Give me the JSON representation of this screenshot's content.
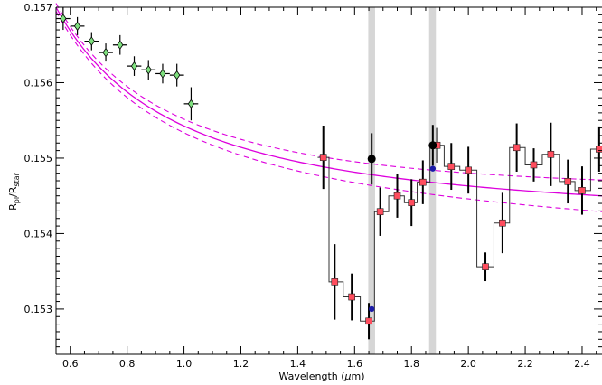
{
  "chart_data": {
    "type": "scatter",
    "title": "",
    "xlabel": "Wavelength (μm)",
    "ylabel": "R_pl/R_star",
    "xlim": [
      0.55,
      2.47
    ],
    "ylim": [
      0.1524,
      0.157
    ],
    "x_ticks": [
      0.6,
      0.8,
      1.0,
      1.2,
      1.4,
      1.6,
      1.8,
      2.0,
      2.2,
      2.4
    ],
    "x_tick_labels": [
      "0.6",
      "0.8",
      "1.0",
      "1.2",
      "1.4",
      "1.6",
      "1.8",
      "2.0",
      "2.2",
      "2.4"
    ],
    "y_ticks": [
      0.153,
      0.154,
      0.155,
      0.156,
      0.157
    ],
    "y_tick_labels": [
      "0.153",
      "0.154",
      "0.155",
      "0.156",
      "0.157"
    ],
    "shaded_bands": [
      {
        "x0": 1.648,
        "x1": 1.672
      },
      {
        "x0": 1.862,
        "x1": 1.886
      }
    ],
    "series": [
      {
        "marker": "green-diamond",
        "color": "#7fe07f",
        "points": [
          {
            "x": 0.575,
            "y": 0.15685,
            "xerr": 0.025,
            "yerr": 0.00015
          },
          {
            "x": 0.625,
            "y": 0.15675,
            "xerr": 0.025,
            "yerr": 0.00012
          },
          {
            "x": 0.675,
            "y": 0.15655,
            "xerr": 0.025,
            "yerr": 0.00012
          },
          {
            "x": 0.725,
            "y": 0.1564,
            "xerr": 0.025,
            "yerr": 0.00012
          },
          {
            "x": 0.775,
            "y": 0.1565,
            "xerr": 0.025,
            "yerr": 0.00013
          },
          {
            "x": 0.825,
            "y": 0.15622,
            "xerr": 0.025,
            "yerr": 0.00013
          },
          {
            "x": 0.875,
            "y": 0.15617,
            "xerr": 0.025,
            "yerr": 0.00013
          },
          {
            "x": 0.925,
            "y": 0.15612,
            "xerr": 0.025,
            "yerr": 0.00013
          },
          {
            "x": 0.975,
            "y": 0.1561,
            "xerr": 0.025,
            "yerr": 0.00015
          },
          {
            "x": 1.025,
            "y": 0.15572,
            "xerr": 0.025,
            "yerr": 0.00022
          }
        ]
      },
      {
        "marker": "red-square",
        "color": "#ff4d5e",
        "step": true,
        "points": [
          {
            "x": 1.49,
            "y": 0.15501,
            "yerr": 0.00042
          },
          {
            "x": 1.53,
            "y": 0.15336,
            "yerr": 0.0005
          },
          {
            "x": 1.59,
            "y": 0.15316,
            "yerr": 0.00031
          },
          {
            "x": 1.65,
            "y": 0.15284,
            "yerr": 0.00024
          },
          {
            "x": 1.69,
            "y": 0.15429,
            "yerr": 0.00032
          },
          {
            "x": 1.75,
            "y": 0.1545,
            "yerr": 0.00029
          },
          {
            "x": 1.8,
            "y": 0.15441,
            "yerr": 0.00031
          },
          {
            "x": 1.84,
            "y": 0.15468,
            "yerr": 0.00029
          },
          {
            "x": 1.89,
            "y": 0.15517,
            "yerr": 0.00023
          },
          {
            "x": 1.94,
            "y": 0.15489,
            "yerr": 0.00031
          },
          {
            "x": 2.0,
            "y": 0.15484,
            "yerr": 0.00031
          },
          {
            "x": 2.06,
            "y": 0.15356,
            "yerr": 0.00019
          },
          {
            "x": 2.12,
            "y": 0.15414,
            "yerr": 0.0004
          },
          {
            "x": 2.17,
            "y": 0.15514,
            "yerr": 0.00032
          },
          {
            "x": 2.23,
            "y": 0.15491,
            "yerr": 0.00022
          },
          {
            "x": 2.29,
            "y": 0.15505,
            "yerr": 0.00042
          },
          {
            "x": 2.35,
            "y": 0.15469,
            "yerr": 0.00029
          },
          {
            "x": 2.4,
            "y": 0.15457,
            "yerr": 0.00032
          },
          {
            "x": 2.46,
            "y": 0.15512,
            "yerr": 0.0003
          }
        ]
      },
      {
        "marker": "black-circle",
        "color": "#000000",
        "points": [
          {
            "x": 1.66,
            "y": 0.15499,
            "xerr": 0.012,
            "yerr": 0.00034
          },
          {
            "x": 1.875,
            "y": 0.15517,
            "xerr": 0.012,
            "yerr": 0.00027
          }
        ]
      },
      {
        "marker": "blue-dot",
        "color": "#1a1aa8",
        "points": [
          {
            "x": 1.66,
            "y": 0.153
          },
          {
            "x": 1.875,
            "y": 0.15486
          }
        ]
      }
    ],
    "model_curve": {
      "color": "#dd00dd",
      "y_at_0_55": 0.157,
      "y_at_2_47": 0.1545,
      "shape": "power-law decreasing"
    },
    "model_curve_upper": {
      "color": "#dd00dd",
      "style": "dashed",
      "offset": 0.00021
    },
    "model_curve_lower": {
      "color": "#dd00dd",
      "style": "dashed",
      "offset": -0.00021
    }
  }
}
